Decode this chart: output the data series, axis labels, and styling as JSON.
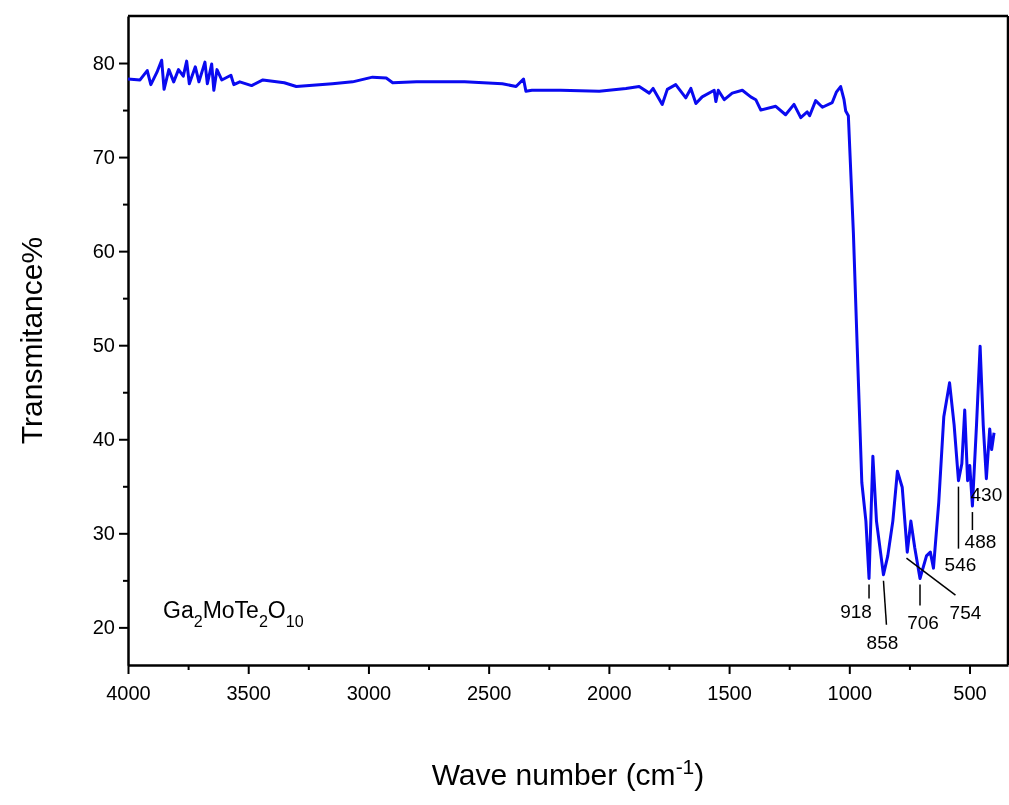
{
  "chart_data": {
    "type": "line",
    "xlabel": "Wave number (cm$^{-1}$)",
    "ylabel": "Transmitance%",
    "xlim": [
      4000,
      340
    ],
    "ylim": [
      16,
      85
    ],
    "xticks": [
      4000,
      {
        "value": 3750,
        "label": null
      },
      3500,
      {
        "value": 3250,
        "label": null
      },
      3000,
      {
        "value": 2750,
        "label": null
      },
      2500,
      {
        "value": 2250,
        "label": null
      },
      2000,
      {
        "value": 1750,
        "label": null
      },
      1500,
      {
        "value": 1250,
        "label": null
      },
      1000,
      {
        "value": 750,
        "label": null
      },
      500
    ],
    "yticks": [
      20,
      {
        "value": 25,
        "label": null
      },
      30,
      {
        "value": 35,
        "label": null
      },
      40,
      {
        "value": 45,
        "label": null
      },
      50,
      {
        "value": 55,
        "label": null
      },
      60,
      {
        "value": 65,
        "label": null
      },
      70,
      {
        "value": 75,
        "label": null
      },
      80
    ],
    "grid": false,
    "marker": "none",
    "line_style": "solid",
    "series": [
      {
        "color": "#0a0af0",
        "x": [
          4000,
          3950,
          3920,
          3905,
          3880,
          3860,
          3850,
          3830,
          3810,
          3790,
          3770,
          3756,
          3745,
          3720,
          3705,
          3680,
          3670,
          3652,
          3643,
          3630,
          3610,
          3572,
          3560,
          3535,
          3486,
          3439,
          3350,
          3300,
          3150,
          3066,
          2983,
          2926,
          2899,
          2800,
          2600,
          2443,
          2386,
          2355,
          2345,
          2320,
          2200,
          2040,
          1929,
          1874,
          1832,
          1816,
          1778,
          1757,
          1722,
          1680,
          1659,
          1638,
          1612,
          1562,
          1555,
          1545,
          1520,
          1487,
          1445,
          1410,
          1389,
          1368,
          1306,
          1265,
          1230,
          1202,
          1175,
          1165,
          1140,
          1112,
          1071,
          1054,
          1036,
          1022,
          1015,
          1004,
          983,
          967,
          948,
          931,
          918,
          902,
          887,
          858,
          840,
          819,
          800,
          780,
          759,
          744,
          728,
          706,
          679,
          663,
          650,
          628,
          607,
          583,
          564,
          546,
          532,
          520,
          508,
          499,
          488,
          471,
          456,
          443,
          430,
          416,
          408,
          398
        ],
        "values": [
          78.3,
          78.2,
          79.2,
          77.7,
          79.0,
          80.3,
          77.2,
          79.3,
          78.0,
          79.3,
          78.6,
          80.2,
          77.8,
          79.6,
          78.0,
          80.1,
          77.8,
          79.9,
          77.1,
          79.3,
          78.2,
          78.7,
          77.7,
          78.0,
          77.6,
          78.2,
          77.9,
          77.5,
          77.8,
          78.0,
          78.5,
          78.4,
          77.9,
          78.0,
          78.0,
          77.8,
          77.5,
          78.3,
          77.0,
          77.1,
          77.1,
          77.0,
          77.3,
          77.5,
          76.8,
          77.3,
          75.6,
          77.2,
          77.7,
          76.3,
          77.3,
          75.7,
          76.4,
          77.1,
          75.9,
          77.1,
          76.1,
          76.8,
          77.1,
          76.4,
          76.1,
          75.0,
          75.4,
          74.5,
          75.6,
          74.2,
          74.8,
          74.4,
          76.0,
          75.3,
          75.8,
          76.9,
          77.5,
          76.1,
          74.9,
          74.4,
          61.9,
          49.7,
          35.4,
          31.3,
          25.2,
          38.2,
          31.3,
          25.6,
          27.6,
          31.3,
          36.6,
          34.9,
          28.0,
          31.3,
          28.5,
          25.2,
          27.6,
          28.0,
          26.3,
          33.3,
          42.4,
          46.0,
          41.5,
          35.6,
          37.4,
          43.1,
          35.6,
          37.2,
          32.9,
          41.5,
          49.9,
          41.5,
          35.8,
          41.1,
          38.9,
          40.7
        ]
      }
    ],
    "annotations": [
      "Ga$_{2}$MoTe$_{2}$O$_{10}$",
      {
        "text": "918",
        "x": 918,
        "y": 25.2
      },
      {
        "text": "858",
        "x": 858,
        "y": 25.6
      },
      {
        "text": "706",
        "x": 706,
        "y": 25.2
      },
      {
        "text": "754",
        "x": 754,
        "y": 28.0
      },
      {
        "text": "546",
        "x": 546,
        "y": 35.6
      },
      {
        "text": "488",
        "x": 488,
        "y": 32.9
      },
      {
        "text": "430",
        "x": 430,
        "y": 35.8
      }
    ]
  }
}
